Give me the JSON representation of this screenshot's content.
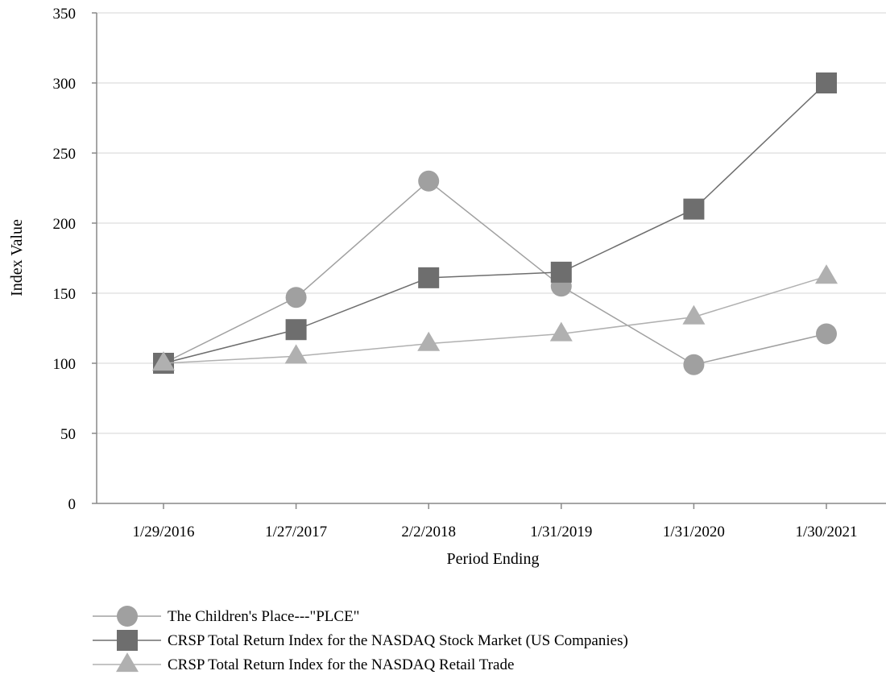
{
  "chart_data": {
    "type": "line",
    "xlabel": "Period Ending",
    "ylabel": "Index Value",
    "categories": [
      "1/29/2016",
      "1/27/2017",
      "2/2/2018",
      "1/31/2019",
      "1/31/2020",
      "1/30/2021"
    ],
    "ylim": [
      0,
      350
    ],
    "yticks": [
      0,
      50,
      100,
      150,
      200,
      250,
      300,
      350
    ],
    "grid": "horizontal",
    "legend_position": "bottom-left",
    "series": [
      {
        "name": "The Children's Place---\"PLCE\"",
        "marker": "circle",
        "color": "#a0a0a0",
        "values": [
          100,
          147,
          230,
          155,
          99,
          121
        ]
      },
      {
        "name": "CRSP Total Return Index for the NASDAQ Stock Market (US Companies)",
        "marker": "square",
        "color": "#6e6e6e",
        "values": [
          100,
          124,
          161,
          165,
          210,
          300
        ]
      },
      {
        "name": "CRSP Total Return Index for the NASDAQ Retail Trade",
        "marker": "triangle",
        "color": "#b0b0b0",
        "values": [
          100,
          105,
          114,
          121,
          133,
          162
        ]
      }
    ]
  }
}
